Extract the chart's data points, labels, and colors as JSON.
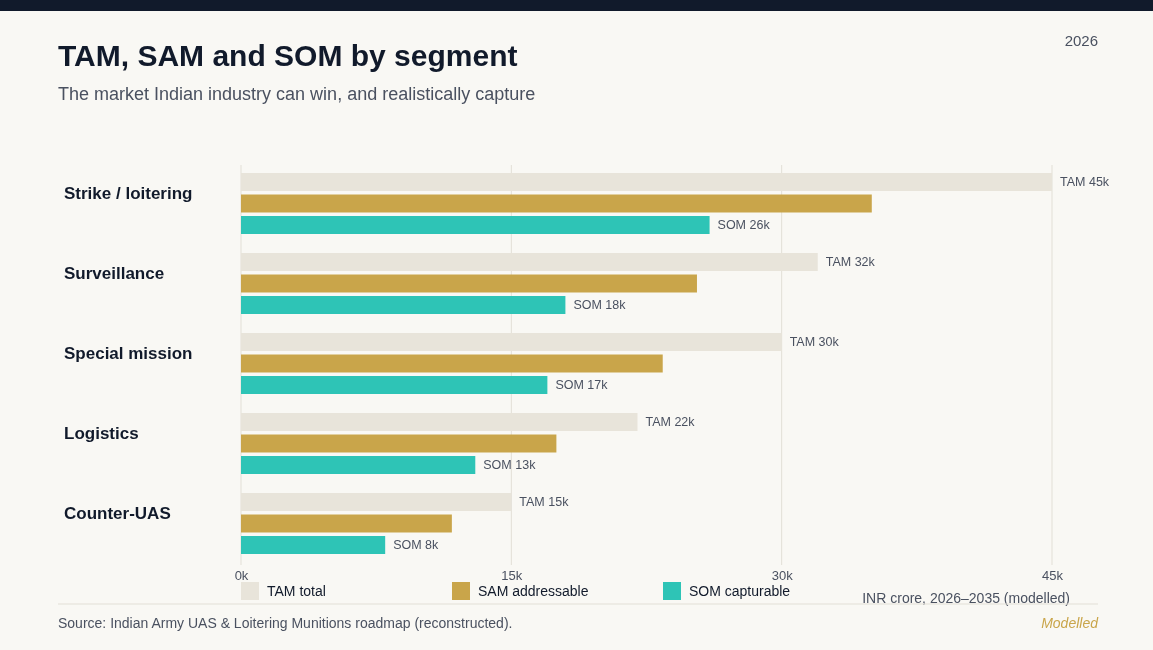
{
  "chart_data": {
    "type": "bar",
    "orientation": "horizontal",
    "title": "TAM, SAM and SOM by segment",
    "subtitle": "The market Indian industry can win, and realistically capture",
    "xlabel": "INR crore, 2026–2035 (modelled)",
    "categories": [
      "Strike / loitering",
      "Surveillance",
      "Special mission",
      "Logistics",
      "Counter-UAS"
    ],
    "series": [
      {
        "name": "TAM total",
        "color": "#e8e4da",
        "values": [
          45,
          32,
          30,
          22,
          15
        ],
        "value_labels": [
          "TAM 45k",
          "TAM 32k",
          "TAM 30k",
          "TAM 22k",
          "TAM 15k"
        ]
      },
      {
        "name": "SAM addressable",
        "color": "#c9a54a",
        "values": [
          35,
          25.3,
          23.4,
          17.5,
          11.7
        ]
      },
      {
        "name": "SOM capturable",
        "color": "#2ec4b6",
        "values": [
          26,
          18,
          17,
          13,
          8
        ],
        "value_labels": [
          "SOM 26k",
          "SOM 18k",
          "SOM 17k",
          "SOM 13k",
          "SOM 8k"
        ]
      }
    ],
    "xlim": [
      0,
      45
    ],
    "xticks": [
      {
        "value": 0,
        "label": "0k"
      },
      {
        "value": 15,
        "label": "15k"
      },
      {
        "value": 30,
        "label": "30k"
      },
      {
        "value": 45,
        "label": "45k"
      }
    ],
    "grid": "x",
    "legend": "bottom",
    "annotations": [
      "2026",
      "Source: Indian Army UAS & Loitering Munitions roadmap (reconstructed).",
      "Modelled"
    ]
  }
}
